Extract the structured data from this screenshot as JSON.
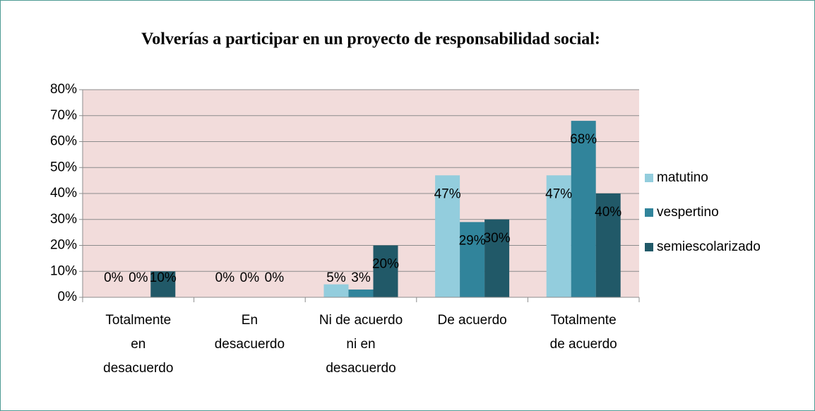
{
  "chart_data": {
    "type": "bar",
    "title": "Volverías a participar en un proyecto de responsabilidad social:",
    "categories": [
      "Totalmente\nen\ndesacuerdo",
      "En\ndesacuerdo",
      "Ni de acuerdo\nni en\ndesacuerdo",
      "De acuerdo",
      "Totalmente\nde acuerdo"
    ],
    "series": [
      {
        "name": "matutino",
        "color": "#93cddd",
        "values": [
          0,
          0,
          5,
          47,
          47
        ],
        "value_labels": [
          "0%",
          "0%",
          "5%",
          "47%",
          "47%"
        ]
      },
      {
        "name": "vespertino",
        "color": "#31849b",
        "values": [
          0,
          0,
          3,
          29,
          68
        ],
        "value_labels": [
          "0%",
          "0%",
          "3%",
          "29%",
          "68%"
        ]
      },
      {
        "name": "semiescolarizado",
        "color": "#215968",
        "values": [
          10,
          0,
          20,
          30,
          40
        ],
        "value_labels": [
          "10%",
          "0%",
          "20%",
          "30%",
          "40%"
        ]
      }
    ],
    "ylim": [
      0,
      80
    ],
    "yticks": [
      {
        "value": 0,
        "label": "0%"
      },
      {
        "value": 10,
        "label": "10%"
      },
      {
        "value": 20,
        "label": "20%"
      },
      {
        "value": 30,
        "label": "30%"
      },
      {
        "value": 40,
        "label": "40%"
      },
      {
        "value": 50,
        "label": "50%"
      },
      {
        "value": 60,
        "label": "60%"
      },
      {
        "value": 70,
        "label": "70%"
      },
      {
        "value": 80,
        "label": "80%"
      }
    ],
    "grid": true,
    "legend": "right",
    "plot_background": "#f2dcdb"
  }
}
